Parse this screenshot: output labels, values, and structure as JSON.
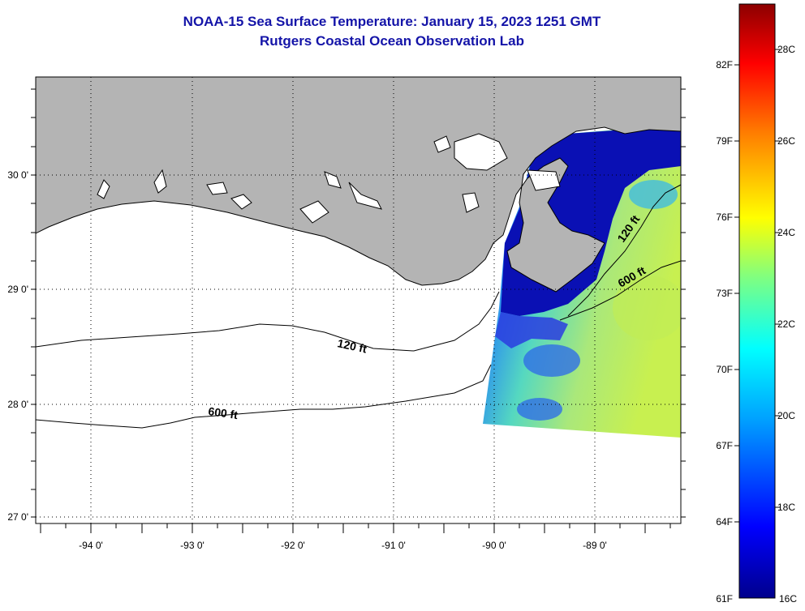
{
  "header": {
    "title": "NOAA-15 Sea Surface Temperature:  January 15, 2023 1251 GMT",
    "subtitle": "Rutgers Coastal Ocean Observation Lab"
  },
  "map": {
    "lat_labels": [
      "30 0'",
      "29 0'",
      "28 0'",
      "27 0'"
    ],
    "lon_labels": [
      "-94 0'",
      "-93 0'",
      "-92 0'",
      "-91 0'",
      "-90 0'",
      "-89 0'"
    ],
    "contours": [
      {
        "label": "120 ft",
        "depth_ft": 120
      },
      {
        "label": "600 ft",
        "depth_ft": 600
      },
      {
        "label": "120 ft",
        "depth_ft": 120
      },
      {
        "label": "600 ft",
        "depth_ft": 600
      }
    ],
    "land_color": "#b4b4b4",
    "grid_style": "dotted"
  },
  "colorbar": {
    "fahrenheit_labels": [
      "82F",
      "79F",
      "76F",
      "73F",
      "70F",
      "67F",
      "64F",
      "61F"
    ],
    "celsius_labels": [
      "28C",
      "26C",
      "24C",
      "22C",
      "20C",
      "18C",
      "16C"
    ],
    "range_c": [
      16,
      29
    ],
    "colors": [
      "#00008c",
      "#0000ff",
      "#00a0ff",
      "#00ffff",
      "#80ff80",
      "#ffff00",
      "#ff8000",
      "#ff0000",
      "#8c0000"
    ]
  }
}
